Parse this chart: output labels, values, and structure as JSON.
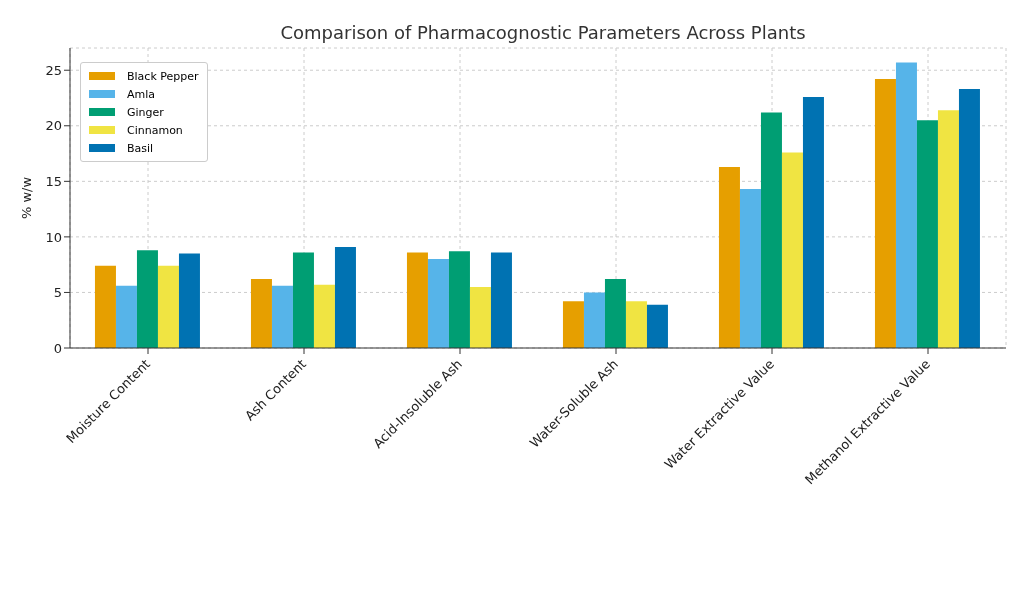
{
  "chart_data": {
    "type": "bar",
    "title": "Comparison of Pharmacognostic Parameters Across Plants",
    "ylabel": "% w/w",
    "categories": [
      "Moisture Content",
      "Ash Content",
      "Acid-Insoluble Ash",
      "Water-Soluble Ash",
      "Water Extractive Value",
      "Methanol Extractive Value"
    ],
    "series": [
      {
        "name": "Black Pepper",
        "color": "#e69f00",
        "values": [
          7.4,
          6.2,
          8.6,
          4.2,
          16.3,
          24.2
        ]
      },
      {
        "name": "Amla",
        "color": "#56b4e9",
        "values": [
          5.6,
          5.6,
          8.0,
          5.0,
          14.3,
          25.7
        ]
      },
      {
        "name": "Ginger",
        "color": "#009e73",
        "values": [
          8.8,
          8.6,
          8.7,
          6.2,
          21.2,
          20.5
        ]
      },
      {
        "name": "Cinnamon",
        "color": "#f0e442",
        "values": [
          7.4,
          5.7,
          5.5,
          4.2,
          17.6,
          21.4
        ]
      },
      {
        "name": "Basil",
        "color": "#0072b2",
        "values": [
          8.5,
          9.1,
          8.6,
          3.9,
          22.6,
          23.3
        ]
      }
    ],
    "ylim": [
      0,
      27
    ],
    "yticks": [
      0,
      5,
      10,
      15,
      20,
      25
    ],
    "grid": true,
    "legend": "top left"
  }
}
